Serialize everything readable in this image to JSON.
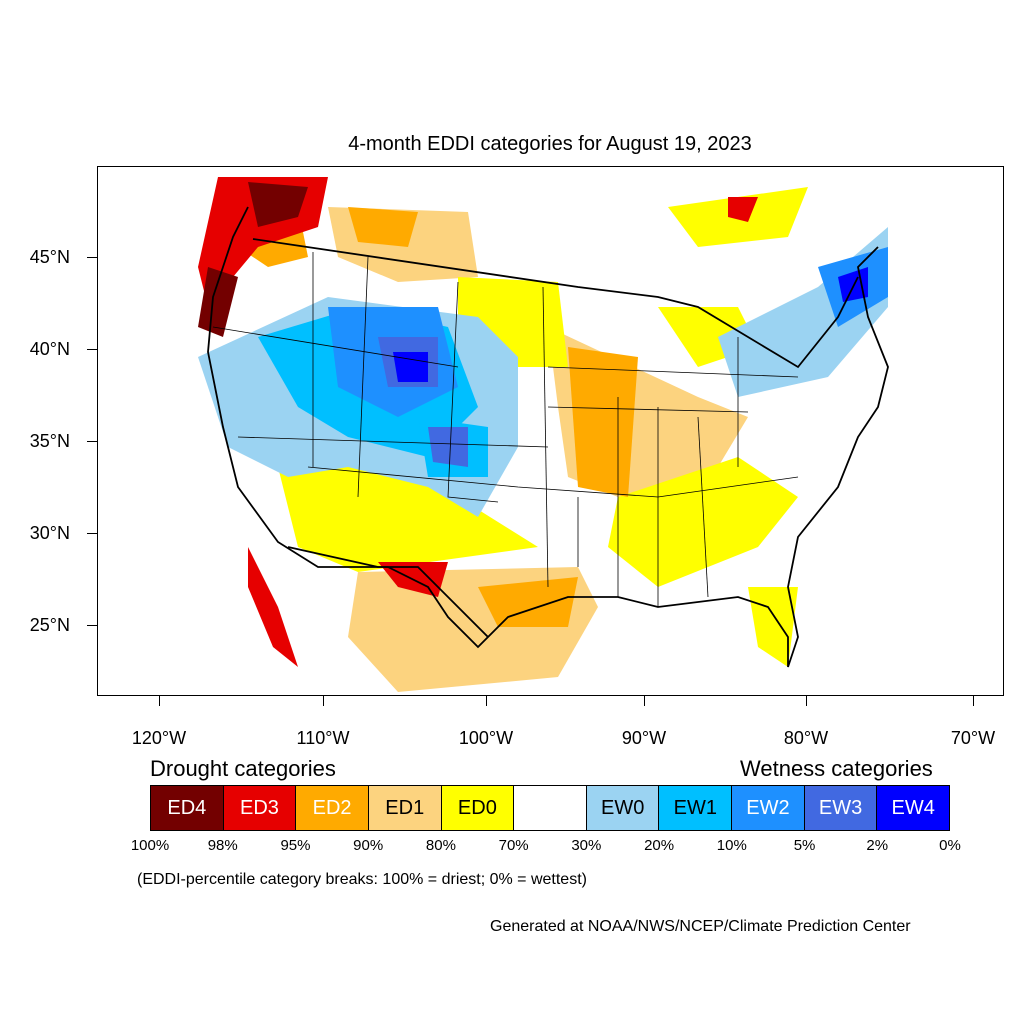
{
  "title": "4-month EDDI categories for August 19, 2023",
  "lat_labels": [
    "45°N",
    "40°N",
    "35°N",
    "30°N",
    "25°N"
  ],
  "lon_labels": [
    "120°W",
    "110°W",
    "100°W",
    "90°W",
    "80°W",
    "70°W"
  ],
  "legend": {
    "drought_heading": "Drought categories",
    "wetness_heading": "Wetness categories",
    "categories": [
      {
        "label": "ED4",
        "color": "#730000",
        "text_color": "#ffffff"
      },
      {
        "label": "ED3",
        "color": "#e60000",
        "text_color": "#ffffff"
      },
      {
        "label": "ED2",
        "color": "#ffaa00",
        "text_color": "#ffffff"
      },
      {
        "label": "ED1",
        "color": "#fcd37f",
        "text_color": "#000000"
      },
      {
        "label": "ED0",
        "color": "#ffff00",
        "text_color": "#000000"
      },
      {
        "label": "",
        "color": "#ffffff",
        "text_color": "#000000"
      },
      {
        "label": "EW0",
        "color": "#9bd3f2",
        "text_color": "#000000"
      },
      {
        "label": "EW1",
        "color": "#00bfff",
        "text_color": "#000000"
      },
      {
        "label": "EW2",
        "color": "#1e90ff",
        "text_color": "#ffffff"
      },
      {
        "label": "EW3",
        "color": "#4169e1",
        "text_color": "#ffffff"
      },
      {
        "label": "EW4",
        "color": "#0000ff",
        "text_color": "#ffffff"
      }
    ],
    "breaks": [
      "100%",
      "98%",
      "95%",
      "90%",
      "80%",
      "70%",
      "30%",
      "20%",
      "10%",
      "5%",
      "2%",
      "0%"
    ]
  },
  "note": "(EDDI-percentile category breaks: 100% = driest; 0% = wettest)",
  "credit": "Generated at NOAA/NWS/NCEP/Climate Prediction Center"
}
